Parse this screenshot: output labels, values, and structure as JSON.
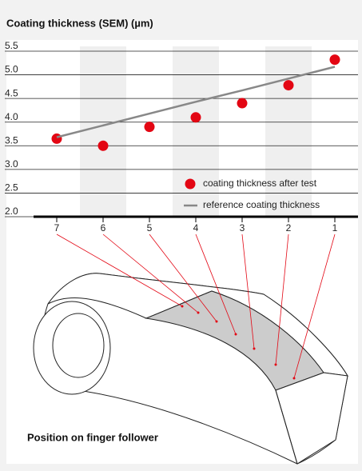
{
  "chart_data": {
    "type": "scatter",
    "title": "Coating thickness (SEM) (µm)",
    "subtitle": "Position on finger follower",
    "categories": [
      "7",
      "6",
      "5",
      "4",
      "3",
      "2",
      "1"
    ],
    "series": [
      {
        "name": "coating thickness after test",
        "color": "#e30613",
        "values": [
          3.65,
          3.5,
          3.9,
          4.1,
          4.4,
          4.78,
          5.32
        ]
      },
      {
        "name": "reference coating thickness",
        "color": "#888888",
        "values": [
          3.68,
          3.93,
          4.18,
          4.43,
          4.67,
          4.92,
          5.17
        ]
      }
    ],
    "ylim": [
      2.0,
      5.5
    ],
    "yticks": [
      {
        "value": 2,
        "label": "2.0"
      },
      2.5,
      {
        "value": 3,
        "label": "3.0"
      },
      3.5,
      {
        "value": 4,
        "label": "4.0"
      },
      4.5,
      {
        "value": 5,
        "label": "5.0"
      },
      5.5
    ],
    "grid": true,
    "legend": "bottom-right"
  }
}
